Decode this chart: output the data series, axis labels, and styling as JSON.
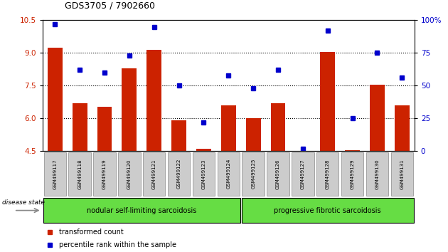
{
  "title": "GDS3705 / 7902660",
  "samples": [
    "GSM499117",
    "GSM499118",
    "GSM499119",
    "GSM499120",
    "GSM499121",
    "GSM499122",
    "GSM499123",
    "GSM499124",
    "GSM499125",
    "GSM499126",
    "GSM499127",
    "GSM499128",
    "GSM499129",
    "GSM499130",
    "GSM499131"
  ],
  "transformed_count": [
    9.25,
    6.7,
    6.55,
    8.3,
    9.15,
    5.92,
    4.62,
    6.6,
    6.0,
    6.7,
    4.52,
    9.05,
    4.55,
    7.55,
    6.6
  ],
  "percentile_rank": [
    97,
    62,
    60,
    73,
    95,
    50,
    22,
    58,
    48,
    62,
    2,
    92,
    25,
    75,
    56
  ],
  "ylim_left": [
    4.5,
    10.5
  ],
  "ylim_right": [
    0,
    100
  ],
  "yticks_left": [
    4.5,
    6.0,
    7.5,
    9.0,
    10.5
  ],
  "yticks_right": [
    0,
    25,
    50,
    75,
    100
  ],
  "ytick_labels_right": [
    "0",
    "25",
    "50",
    "75",
    "100%"
  ],
  "grid_lines": [
    6.0,
    7.5,
    9.0
  ],
  "bar_color": "#cc2200",
  "marker_color": "#0000cc",
  "group1_label": "nodular self-limiting sarcoidosis",
  "group2_label": "progressive fibrotic sarcoidosis",
  "group1_count": 8,
  "group2_count": 7,
  "disease_state_label": "disease state",
  "legend_bar_label": "transformed count",
  "legend_marker_label": "percentile rank within the sample",
  "group_bg_color": "#66dd44",
  "sample_box_color": "#cccccc",
  "bg_color": "#ffffff"
}
